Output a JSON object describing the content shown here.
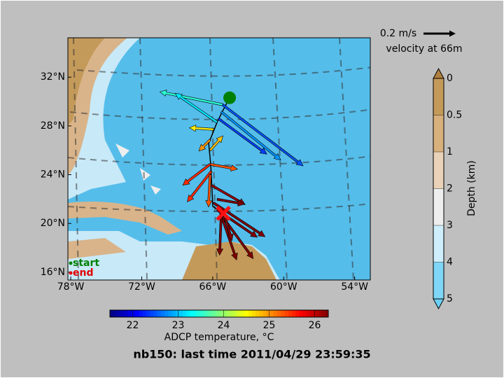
{
  "map": {
    "title": "nb150: last time 2011/04/29 23:59:35",
    "lonlim": [
      -78.24,
      -52.68
    ],
    "latlim": [
      15.36,
      35.23
    ],
    "lon_ticks": [
      {
        "value": -78,
        "label": "78°W"
      },
      {
        "value": -72,
        "label": "72°W"
      },
      {
        "value": -66,
        "label": "66°W"
      },
      {
        "value": -60,
        "label": "60°W"
      },
      {
        "value": -54,
        "label": "54°W"
      }
    ],
    "lat_ticks": [
      {
        "value": 16,
        "label": "16°N"
      },
      {
        "value": 20,
        "label": "20°N"
      },
      {
        "value": 24,
        "label": "24°N"
      },
      {
        "value": 28,
        "label": "28°N"
      },
      {
        "value": 32,
        "label": "32°N"
      }
    ],
    "scale": {
      "speed": {
        "value": 0.2,
        "label": "0.2 m/s"
      },
      "caption": "velocity at 66m"
    },
    "legend": {
      "start": "start",
      "end": "end"
    },
    "track": {
      "lon": [
        -64.57,
        -65.04,
        -65.63,
        -66.34,
        -66.17,
        -65.99,
        -65.1
      ],
      "lat": [
        30.31,
        29.45,
        28.3,
        26.57,
        24.85,
        21.4,
        20.83
      ]
    },
    "vectors": {
      "lon": [
        -65.16,
        -65.16,
        -65.28,
        -65.51,
        -65.63,
        -65.93,
        -66.22,
        -66.22,
        -66.22,
        -66.22,
        -66.11,
        -66.22,
        -66.11,
        -65.93,
        -65.63,
        -65.34,
        -65.16,
        -65.28,
        -64.92,
        -65.63
      ],
      "lat": [
        29.74,
        29.74,
        29.16,
        28.59,
        28.3,
        27.72,
        26.86,
        26.0,
        24.85,
        24.85,
        24.28,
        23.99,
        23.13,
        21.69,
        21.11,
        20.83,
        20.54,
        20.83,
        20.43,
        21.98
      ],
      "u": [
        -0.39,
        0.5,
        0.37,
        0.3,
        -0.26,
        -0.15,
        -0.07,
        0.08,
        0.17,
        -0.17,
        -0.15,
        -0.01,
        0.21,
        0.32,
        0.25,
        0.1,
        0.19,
        -0.01,
        0.04,
        0.17
      ],
      "v": [
        0.08,
        -0.38,
        -0.3,
        -0.22,
        0.18,
        0.01,
        -0.07,
        0.09,
        -0.03,
        -0.13,
        -0.19,
        -0.2,
        -0.12,
        -0.21,
        -0.17,
        -0.29,
        -0.26,
        -0.26,
        -0.14,
        -0.03
      ],
      "temperature": [
        23.5,
        22.5,
        22.8,
        22.4,
        23.2,
        24.6,
        25.0,
        24.8,
        25.3,
        25.5,
        25.5,
        25.3,
        26.2,
        26.5,
        26.3,
        26.4,
        26.5,
        26.5,
        26.4,
        26.3
      ]
    },
    "temperature_colorbar": {
      "label": "ADCP temperature, °C",
      "range": [
        21.5,
        26.3
      ],
      "ticks": [
        22,
        23,
        24,
        25,
        26
      ]
    },
    "depth_colorbar": {
      "label": "Depth (km)",
      "ticks": [
        0,
        0.5,
        1,
        2,
        3,
        4,
        5
      ],
      "colors": [
        "#c49a5a",
        "#d8b07c",
        "#ead2b8",
        "#eeeeee",
        "#cdeefa",
        "#7fd6f6"
      ]
    }
  }
}
